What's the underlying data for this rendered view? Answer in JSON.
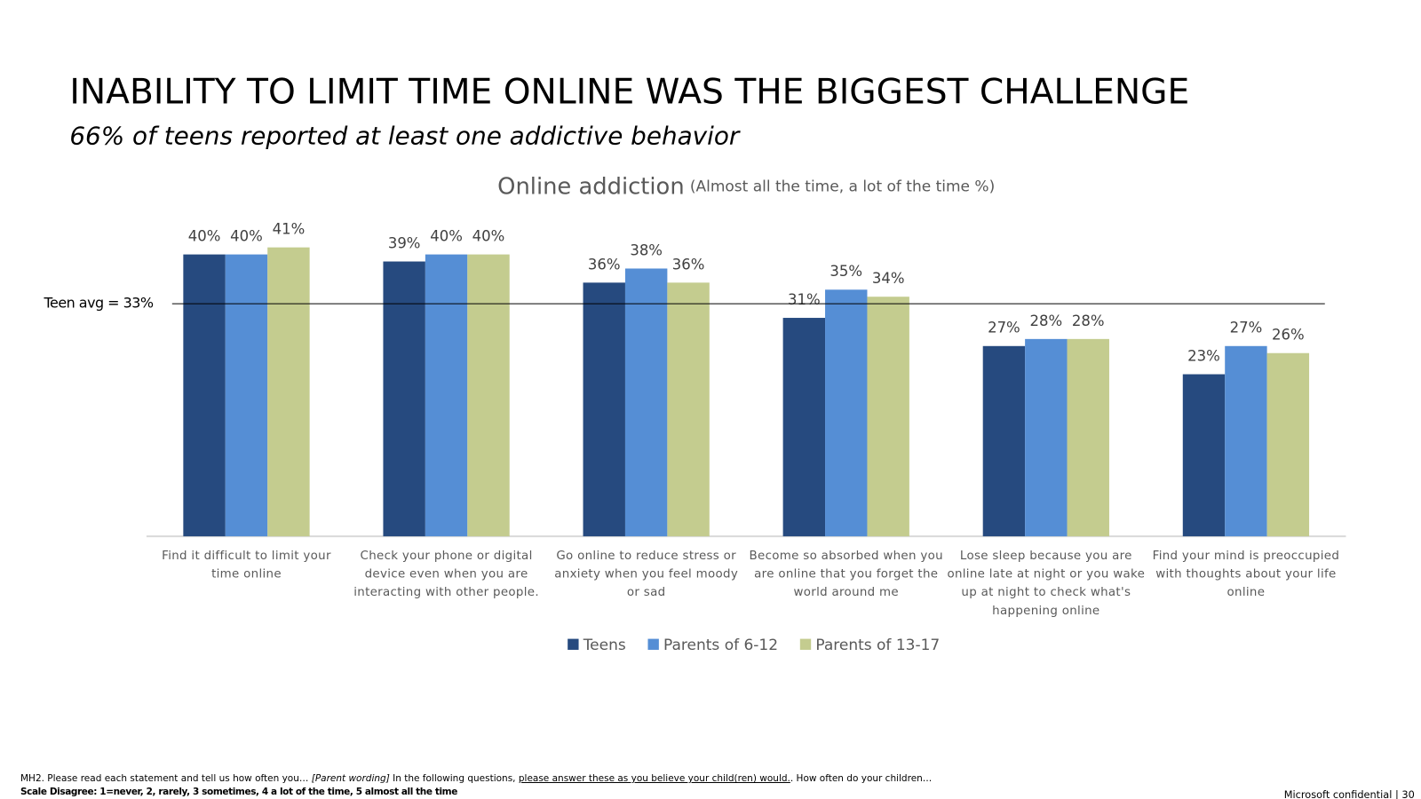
{
  "slide": {
    "title": "INABILITY TO LIMIT TIME ONLINE WAS THE BIGGEST CHALLENGE",
    "subtitle": "66% of teens reported at least one addictive behavior",
    "footnote": [
      "MH2. Please read each statement and tell us how often you…",
      "[Parent wording]",
      "In the following questions,",
      "please answer these as you believe your child(ren) would.",
      ". How often do your children…"
    ],
    "scale_note": "Scale Disagree: 1=never, 2, rarely, 3 sometimes, 4 a lot of the time, 5 almost all the time",
    "confidential": "Microsoft confidential | 30"
  },
  "chart_data": {
    "type": "bar",
    "title": "Online addiction",
    "subtitle": "(Almost all the time, a lot of the time %)",
    "categories": [
      "Find it difficult to limit your time online",
      "Check your phone or digital device even when you are interacting with other people.",
      "Go online to reduce stress or anxiety when you feel moody or sad",
      "Become so absorbed when you are online that you forget the world around me",
      "Lose sleep because you are online late at night or you wake up at night to check what's happening online",
      "Find your mind is preoccupied with thoughts about your life online"
    ],
    "series": [
      {
        "name": "Teens",
        "color": "#264a7f",
        "values": [
          40,
          39,
          36,
          31,
          27,
          23
        ],
        "value_labels": [
          "40%",
          "39%",
          "36%",
          "31%",
          "27%",
          "23%"
        ]
      },
      {
        "name": "Parents of 6-12",
        "color": "#558ed5",
        "values": [
          40,
          40,
          38,
          35,
          28,
          27
        ],
        "value_labels": [
          "40%",
          "40%",
          "38%",
          "35%",
          "28%",
          "27%"
        ]
      },
      {
        "name": "Parents of 13-17",
        "color": "#c4cc8f",
        "values": [
          41,
          40,
          36,
          34,
          28,
          26
        ],
        "value_labels": [
          "41%",
          "40%",
          "36%",
          "34%",
          "28%",
          "26%"
        ]
      }
    ],
    "ylim": [
      0,
      50
    ],
    "reference_line": {
      "value": 33,
      "label": "Teen avg = 33%"
    }
  }
}
